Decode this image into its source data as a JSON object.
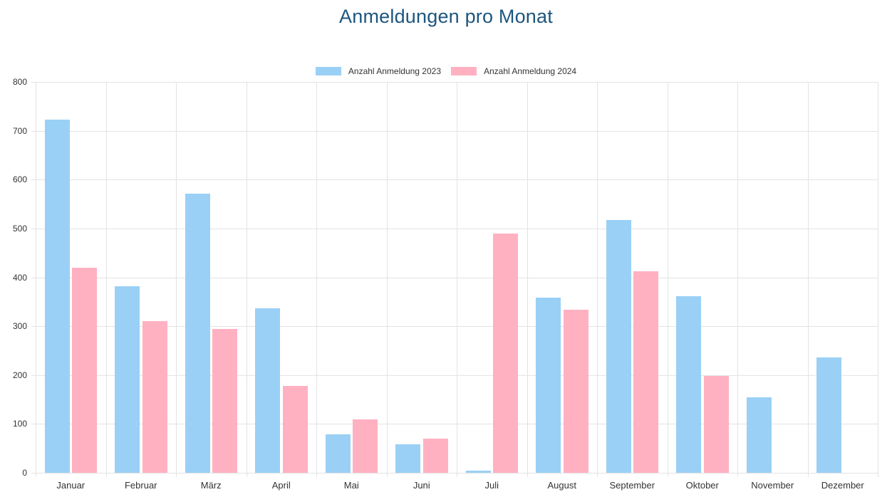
{
  "chart_data": {
    "type": "bar",
    "title": "Anmeldungen pro Monat",
    "title_color": "#1d567e",
    "categories": [
      "Januar",
      "Februar",
      "März",
      "April",
      "Mai",
      "Juni",
      "Juli",
      "August",
      "September",
      "Oktober",
      "November",
      "Dezember"
    ],
    "series": [
      {
        "name": "Anzahl Anmeldung 2023",
        "color": "#9ad0f5",
        "values": [
          723,
          382,
          571,
          336,
          78,
          59,
          5,
          359,
          518,
          362,
          154,
          236
        ]
      },
      {
        "name": "Anzahl Anmeldung 2024",
        "color": "#ffb1c2",
        "values": [
          420,
          310,
          294,
          178,
          109,
          70,
          490,
          333,
          413,
          198,
          0,
          0
        ]
      }
    ],
    "ylim": [
      0,
      800
    ],
    "yticks": [
      "0",
      "100",
      "200",
      "300",
      "400",
      "500",
      "600",
      "700",
      "800"
    ],
    "ytick_step": 100,
    "grid": true,
    "grid_color": "#e3e3e3",
    "tick_color": "#333333",
    "legend_position": "top"
  }
}
